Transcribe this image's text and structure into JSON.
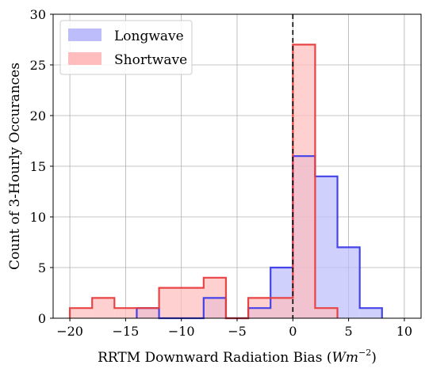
{
  "chart_data": {
    "type": "histogram",
    "xlabel": "RRTM Downward Radiation Bias (",
    "xlabel_math": "Wm",
    "xlabel_sup": "−2",
    "xlabel_close": ")",
    "ylabel": "Count of 3-Hourly Occurances",
    "xlim": [
      -21.5,
      11.5
    ],
    "ylim": [
      0,
      30
    ],
    "xticks": [
      -20,
      -15,
      -10,
      -5,
      0,
      5,
      10
    ],
    "xtick_labels": [
      "−20",
      "−15",
      "−10",
      "−5",
      "0",
      "5",
      "10"
    ],
    "yticks": [
      0,
      5,
      10,
      15,
      20,
      25,
      30
    ],
    "ytick_labels": [
      "0",
      "5",
      "10",
      "15",
      "20",
      "25",
      "30"
    ],
    "grid": true,
    "reference_line_x": 0,
    "legend_position": "upper-left",
    "series": [
      {
        "name": "Longwave",
        "fill_color": "#bdbdfb",
        "edge_color": "#3b3be8",
        "bin_edges": [
          -14,
          -12,
          -10,
          -8,
          -6,
          -4,
          -2,
          0,
          2,
          4,
          6,
          8
        ],
        "counts": [
          1,
          0,
          0,
          2,
          0,
          1,
          5,
          16,
          14,
          7,
          1
        ]
      },
      {
        "name": "Shortwave",
        "fill_color": "#ffbdbd",
        "edge_color": "#e83b3b",
        "bin_edges": [
          -20,
          -18,
          -16,
          -14,
          -12,
          -10,
          -8,
          -6,
          -4,
          -2,
          0,
          2,
          4
        ],
        "counts": [
          1,
          2,
          1,
          1,
          3,
          3,
          4,
          0,
          2,
          2,
          27,
          1
        ]
      }
    ]
  }
}
